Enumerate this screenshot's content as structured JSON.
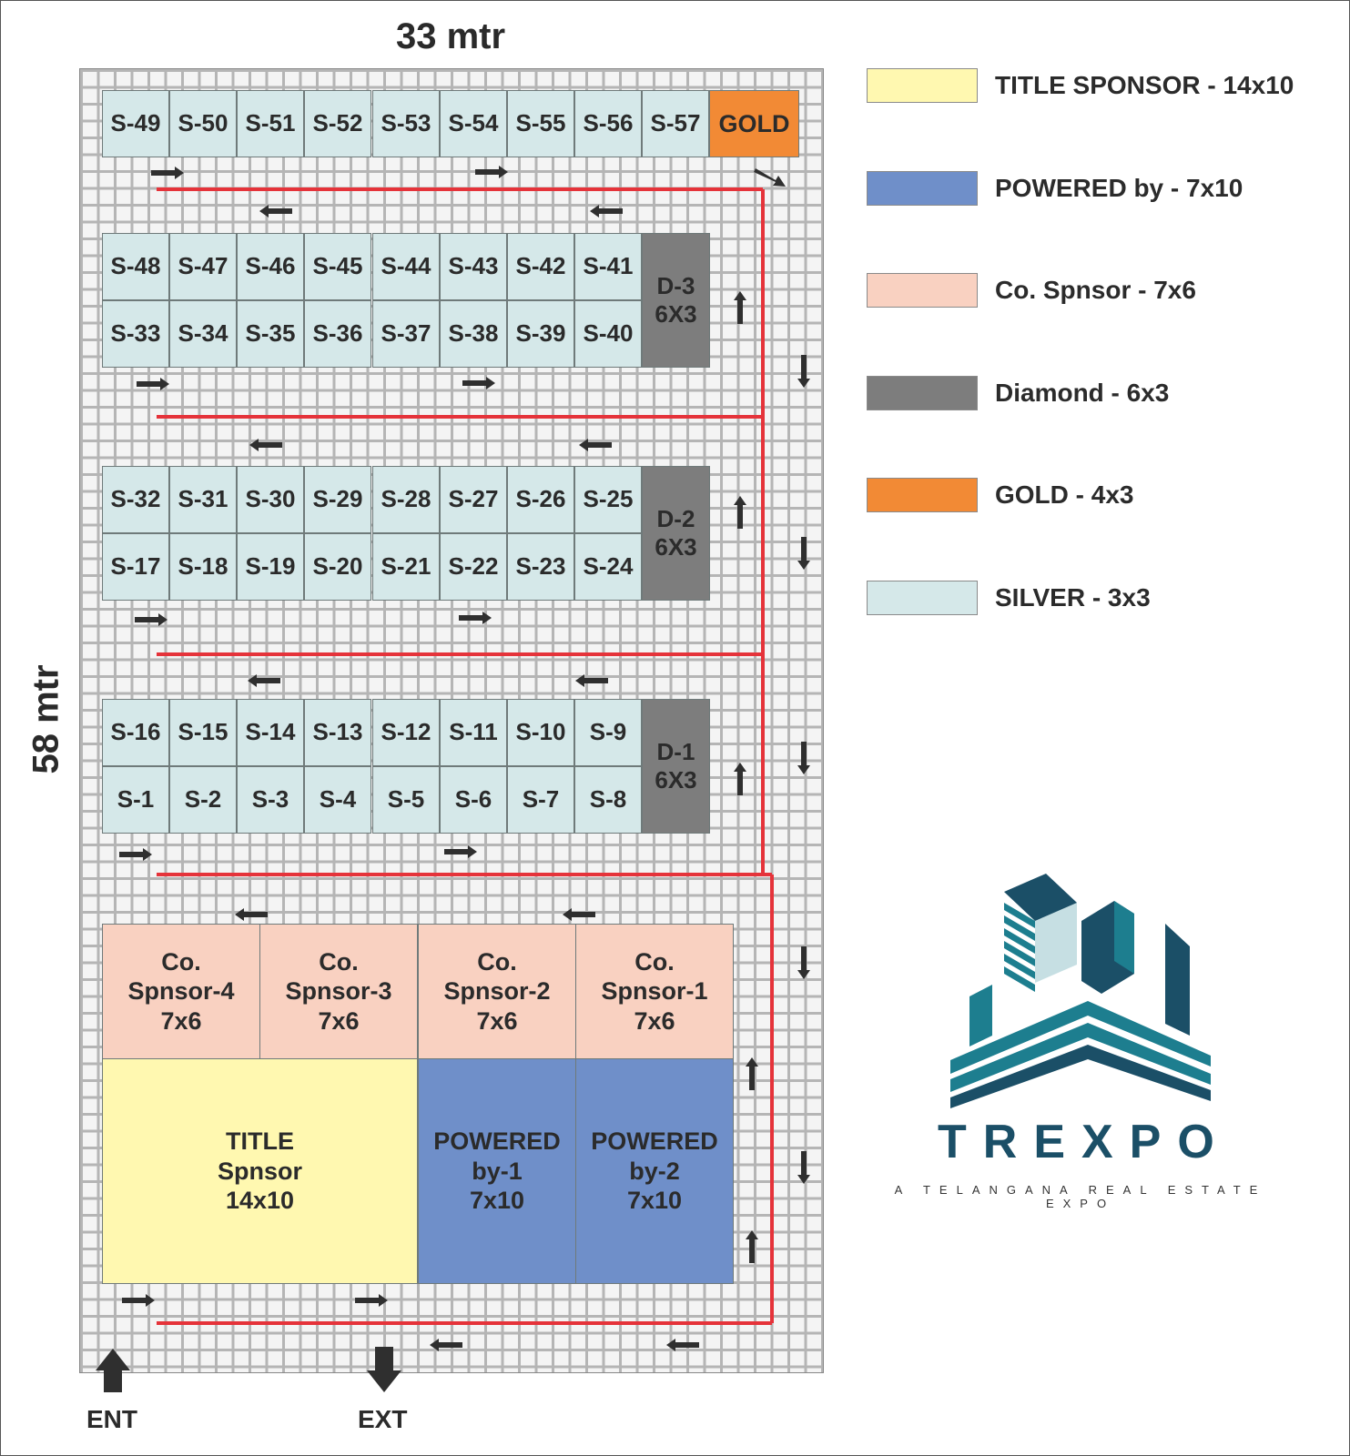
{
  "dimensions": {
    "width": "33 mtr",
    "length": "58 mtr"
  },
  "booths": {
    "row1": [
      "S-49",
      "S-50",
      "S-51",
      "S-52",
      "S-53",
      "S-54",
      "S-55",
      "S-56",
      "S-57"
    ],
    "gold": "GOLD",
    "block3": {
      "top": [
        "S-48",
        "S-47",
        "S-46",
        "S-45",
        "S-44",
        "S-43",
        "S-42",
        "S-41"
      ],
      "bottom": [
        "S-33",
        "S-34",
        "S-35",
        "S-36",
        "S-37",
        "S-38",
        "S-39",
        "S-40"
      ],
      "diamond": "D-3\n6X3"
    },
    "block2": {
      "top": [
        "S-32",
        "S-31",
        "S-30",
        "S-29",
        "S-28",
        "S-27",
        "S-26",
        "S-25"
      ],
      "bottom": [
        "S-17",
        "S-18",
        "S-19",
        "S-20",
        "S-21",
        "S-22",
        "S-23",
        "S-24"
      ],
      "diamond": "D-2\n6X3"
    },
    "block1": {
      "top": [
        "S-16",
        "S-15",
        "S-14",
        "S-13",
        "S-12",
        "S-11",
        "S-10",
        "S-9"
      ],
      "bottom": [
        "S-1",
        "S-2",
        "S-3",
        "S-4",
        "S-5",
        "S-6",
        "S-7",
        "S-8"
      ],
      "diamond": "D-1\n6X3"
    },
    "co_sponsors": [
      "Co.\nSpnsor-4\n7x6",
      "Co.\nSpnsor-3\n7x6",
      "Co.\nSpnsor-2\n7x6",
      "Co.\nSpnsor-1\n7x6"
    ],
    "title_sponsor": "TITLE\nSpnsor\n14x10",
    "powered": [
      "POWERED\nby-1\n7x10",
      "POWERED\nby-2\n7x10"
    ]
  },
  "legend": [
    {
      "label": "TITLE SPONSOR - 14x10",
      "color": "#fff8b0"
    },
    {
      "label": "POWERED by - 7x10",
      "color": "#6f8fc9"
    },
    {
      "label": "Co. Spnsor - 7x6",
      "color": "#f9d1c1"
    },
    {
      "label": "Diamond - 6x3",
      "color": "#7d7d7d"
    },
    {
      "label": "GOLD - 4x3",
      "color": "#f28a35"
    },
    {
      "label": "SILVER - 3x3",
      "color": "#d5e8e9"
    }
  ],
  "entrances": {
    "entry": "ENT",
    "exit": "EXT"
  },
  "brand": {
    "name": "TREXPO",
    "tagline": "A TELANGANA REAL ESTATE EXPO"
  },
  "colors": {
    "route": "#e5333a",
    "arrow": "#2f2f2f",
    "logo_teal": "#1d7e8f",
    "logo_dark": "#1b4f67"
  }
}
